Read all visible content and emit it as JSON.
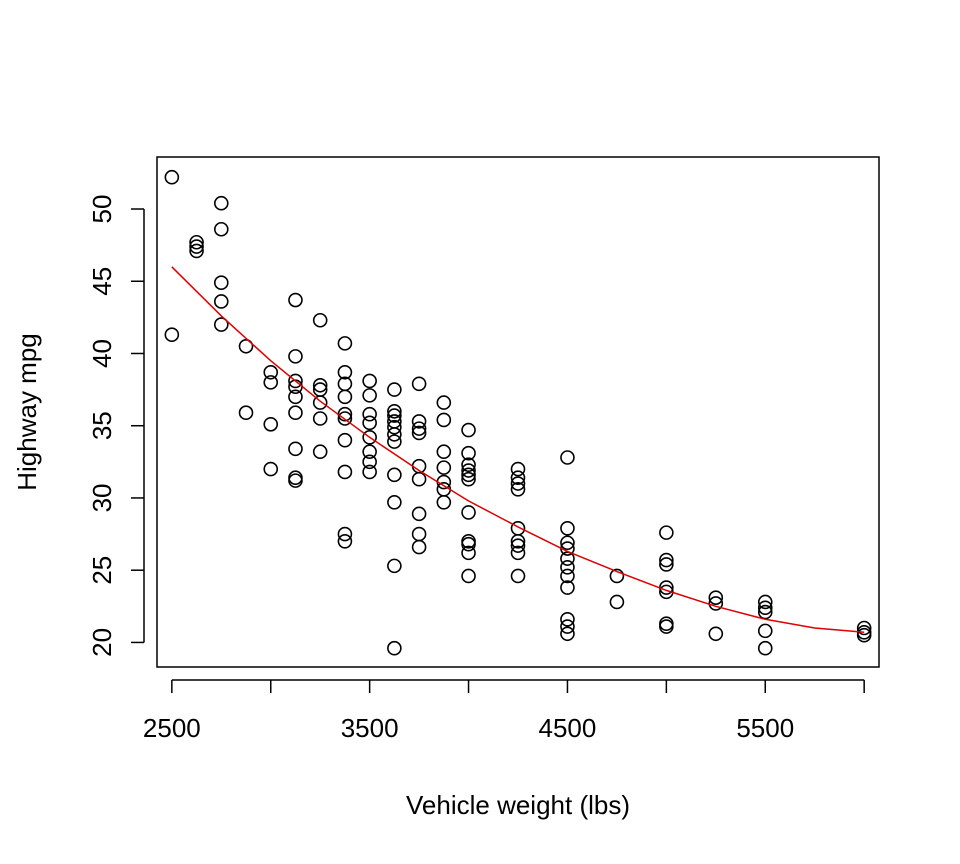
{
  "chart_data": {
    "type": "scatter",
    "title": "",
    "xlabel": "Vehicle weight (lbs)",
    "ylabel": "Highway mpg",
    "xlim": [
      2425,
      6075
    ],
    "ylim": [
      18.3,
      53.6
    ],
    "xticks": [
      2500,
      3000,
      3500,
      4000,
      4500,
      5000,
      5500,
      6000
    ],
    "xtick_labels": [
      "2500",
      "",
      "3500",
      "",
      "4500",
      "",
      "5500",
      ""
    ],
    "yticks": [
      20,
      25,
      30,
      35,
      40,
      45,
      50
    ],
    "ytick_labels": [
      "20",
      "25",
      "30",
      "35",
      "40",
      "45",
      "50"
    ],
    "grid": false,
    "point_color": "#000000",
    "fit_color": "#dd0000",
    "points": [
      [
        2500,
        52.2
      ],
      [
        2500,
        41.3
      ],
      [
        2625,
        47.7
      ],
      [
        2625,
        47.4
      ],
      [
        2625,
        47.1
      ],
      [
        2750,
        50.4
      ],
      [
        2750,
        48.6
      ],
      [
        2750,
        44.9
      ],
      [
        2750,
        43.6
      ],
      [
        2750,
        42.0
      ],
      [
        2875,
        40.5
      ],
      [
        2875,
        35.9
      ],
      [
        3000,
        38.7
      ],
      [
        3000,
        38.0
      ],
      [
        3000,
        35.1
      ],
      [
        3000,
        32.0
      ],
      [
        3125,
        43.7
      ],
      [
        3125,
        39.8
      ],
      [
        3125,
        38.1
      ],
      [
        3125,
        37.7
      ],
      [
        3125,
        37.0
      ],
      [
        3125,
        35.9
      ],
      [
        3125,
        33.4
      ],
      [
        3125,
        31.4
      ],
      [
        3125,
        31.2
      ],
      [
        3250,
        42.3
      ],
      [
        3250,
        37.8
      ],
      [
        3250,
        37.5
      ],
      [
        3250,
        36.6
      ],
      [
        3250,
        35.5
      ],
      [
        3250,
        33.2
      ],
      [
        3375,
        40.7
      ],
      [
        3375,
        38.7
      ],
      [
        3375,
        37.9
      ],
      [
        3375,
        37.0
      ],
      [
        3375,
        35.8
      ],
      [
        3375,
        35.5
      ],
      [
        3375,
        34.0
      ],
      [
        3375,
        31.8
      ],
      [
        3375,
        27.5
      ],
      [
        3375,
        27.0
      ],
      [
        3500,
        38.1
      ],
      [
        3500,
        37.1
      ],
      [
        3500,
        35.8
      ],
      [
        3500,
        35.2
      ],
      [
        3500,
        34.2
      ],
      [
        3500,
        33.2
      ],
      [
        3500,
        32.5
      ],
      [
        3500,
        31.8
      ],
      [
        3625,
        37.5
      ],
      [
        3625,
        36.0
      ],
      [
        3625,
        35.7
      ],
      [
        3625,
        35.3
      ],
      [
        3625,
        34.9
      ],
      [
        3625,
        34.4
      ],
      [
        3625,
        33.9
      ],
      [
        3625,
        31.6
      ],
      [
        3625,
        29.7
      ],
      [
        3625,
        25.3
      ],
      [
        3625,
        19.6
      ],
      [
        3750,
        37.9
      ],
      [
        3750,
        35.3
      ],
      [
        3750,
        34.8
      ],
      [
        3750,
        34.5
      ],
      [
        3750,
        32.2
      ],
      [
        3750,
        31.3
      ],
      [
        3750,
        28.9
      ],
      [
        3750,
        27.5
      ],
      [
        3750,
        26.6
      ],
      [
        3875,
        36.6
      ],
      [
        3875,
        35.4
      ],
      [
        3875,
        33.2
      ],
      [
        3875,
        32.1
      ],
      [
        3875,
        31.1
      ],
      [
        3875,
        30.6
      ],
      [
        3875,
        29.7
      ],
      [
        4000,
        34.7
      ],
      [
        4000,
        33.1
      ],
      [
        4000,
        32.3
      ],
      [
        4000,
        31.9
      ],
      [
        4000,
        31.6
      ],
      [
        4000,
        31.3
      ],
      [
        4000,
        29.0
      ],
      [
        4000,
        27.0
      ],
      [
        4000,
        26.8
      ],
      [
        4000,
        26.2
      ],
      [
        4000,
        24.6
      ],
      [
        4250,
        32.0
      ],
      [
        4250,
        31.4
      ],
      [
        4250,
        31.0
      ],
      [
        4250,
        30.6
      ],
      [
        4250,
        27.9
      ],
      [
        4250,
        27.0
      ],
      [
        4250,
        26.7
      ],
      [
        4250,
        26.2
      ],
      [
        4250,
        24.6
      ],
      [
        4500,
        32.8
      ],
      [
        4500,
        27.9
      ],
      [
        4500,
        26.9
      ],
      [
        4500,
        26.5
      ],
      [
        4500,
        25.8
      ],
      [
        4500,
        25.2
      ],
      [
        4500,
        24.6
      ],
      [
        4500,
        23.8
      ],
      [
        4500,
        21.6
      ],
      [
        4500,
        21.1
      ],
      [
        4500,
        20.6
      ],
      [
        4750,
        24.6
      ],
      [
        4750,
        22.8
      ],
      [
        5000,
        27.6
      ],
      [
        5000,
        25.7
      ],
      [
        5000,
        25.4
      ],
      [
        5000,
        23.8
      ],
      [
        5000,
        23.5
      ],
      [
        5000,
        21.3
      ],
      [
        5000,
        21.1
      ],
      [
        5250,
        23.1
      ],
      [
        5250,
        22.7
      ],
      [
        5250,
        20.6
      ],
      [
        5500,
        22.8
      ],
      [
        5500,
        22.4
      ],
      [
        5500,
        22.1
      ],
      [
        5500,
        20.8
      ],
      [
        5500,
        19.6
      ],
      [
        6000,
        21.0
      ],
      [
        6000,
        20.7
      ],
      [
        6000,
        20.5
      ]
    ],
    "fit_line": [
      [
        2500,
        46.0
      ],
      [
        2750,
        42.6
      ],
      [
        3000,
        39.5
      ],
      [
        3250,
        36.7
      ],
      [
        3500,
        34.2
      ],
      [
        3750,
        31.9
      ],
      [
        4000,
        29.8
      ],
      [
        4250,
        28.0
      ],
      [
        4500,
        26.3
      ],
      [
        4750,
        24.9
      ],
      [
        5000,
        23.6
      ],
      [
        5250,
        22.5
      ],
      [
        5500,
        21.6
      ],
      [
        5750,
        21.0
      ],
      [
        6000,
        20.7
      ]
    ]
  }
}
